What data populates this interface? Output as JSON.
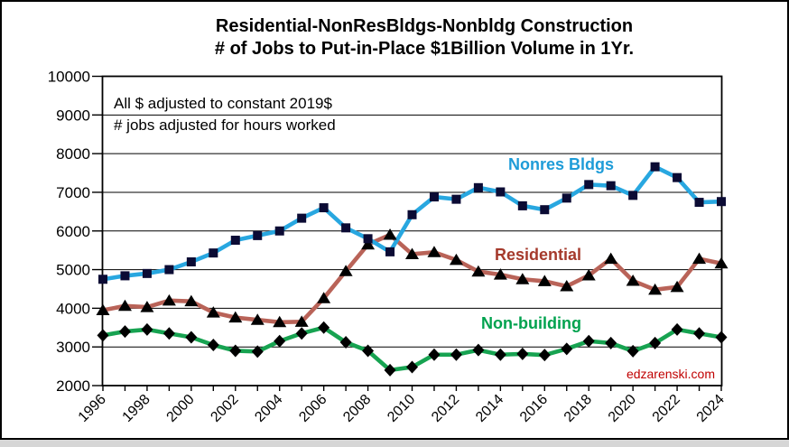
{
  "window": {
    "background": "#ffffff",
    "frame_color": "#000000",
    "bottom_strip_color": "#d6d6d6"
  },
  "title": {
    "line1": "Residential-NonResBldgs-Nonbldg Construction",
    "line2": "# of Jobs to Put-in-Place $1Billion Volume in 1Yr."
  },
  "annotations": {
    "note1": "All $ adjusted to constant 2019$",
    "note2": "# jobs adjusted for hours worked",
    "watermark": "edzarenski.com",
    "watermark_color": "#c00000"
  },
  "chart_data": {
    "type": "line",
    "title": "Residential-NonResBldgs-Nonbldg Construction # of Jobs to Put-in-Place $1Billion Volume in 1Yr.",
    "xlabel": "",
    "ylabel": "",
    "ylim": [
      2000,
      10000
    ],
    "y_ticks": [
      2000,
      3000,
      4000,
      5000,
      6000,
      7000,
      8000,
      9000,
      10000
    ],
    "grid": "horizontal",
    "legend_position": "inline-labels",
    "axis_color": "#000000",
    "x": [
      1996,
      1997,
      1998,
      1999,
      2000,
      2001,
      2002,
      2003,
      2004,
      2005,
      2006,
      2007,
      2008,
      2009,
      2010,
      2011,
      2012,
      2013,
      2014,
      2015,
      2016,
      2017,
      2018,
      2019,
      2020,
      2021,
      2022,
      2023,
      2024
    ],
    "x_tick_labels": [
      "1996",
      "1998",
      "2000",
      "2002",
      "2004",
      "2006",
      "2008",
      "2010",
      "2012",
      "2014",
      "2016",
      "2018",
      "2020",
      "2022",
      "2024"
    ],
    "series": [
      {
        "name": "Nonres Bldgs",
        "line_color": "#28a7e0",
        "label_color": "#1e9cd8",
        "marker": "square",
        "marker_color": "#0b0b34",
        "values": [
          4750,
          4840,
          4900,
          5000,
          5200,
          5430,
          5760,
          5880,
          6000,
          6330,
          6600,
          6080,
          5800,
          5460,
          6420,
          6880,
          6820,
          7120,
          7010,
          6650,
          6550,
          6850,
          7200,
          7170,
          6920,
          7660,
          7380,
          6740,
          6760
        ]
      },
      {
        "name": "Residential",
        "line_color": "#b96358",
        "label_color": "#a53a2c",
        "marker": "triangle",
        "marker_color": "#000000",
        "values": [
          3950,
          4060,
          4030,
          4200,
          4180,
          3890,
          3760,
          3700,
          3640,
          3650,
          4260,
          4960,
          5650,
          5900,
          5400,
          5450,
          5250,
          4950,
          4870,
          4750,
          4700,
          4570,
          4850,
          5280,
          4710,
          4480,
          4550,
          5280,
          5160
        ]
      },
      {
        "name": "Non-building",
        "line_color": "#17a351",
        "label_color": "#00a24e",
        "marker": "diamond",
        "marker_color": "#000000",
        "values": [
          3300,
          3400,
          3450,
          3350,
          3250,
          3050,
          2900,
          2880,
          3150,
          3350,
          3500,
          3120,
          2900,
          2400,
          2480,
          2800,
          2800,
          2920,
          2800,
          2820,
          2790,
          2950,
          3150,
          3100,
          2890,
          3100,
          3450,
          3350,
          3250
        ]
      }
    ]
  }
}
